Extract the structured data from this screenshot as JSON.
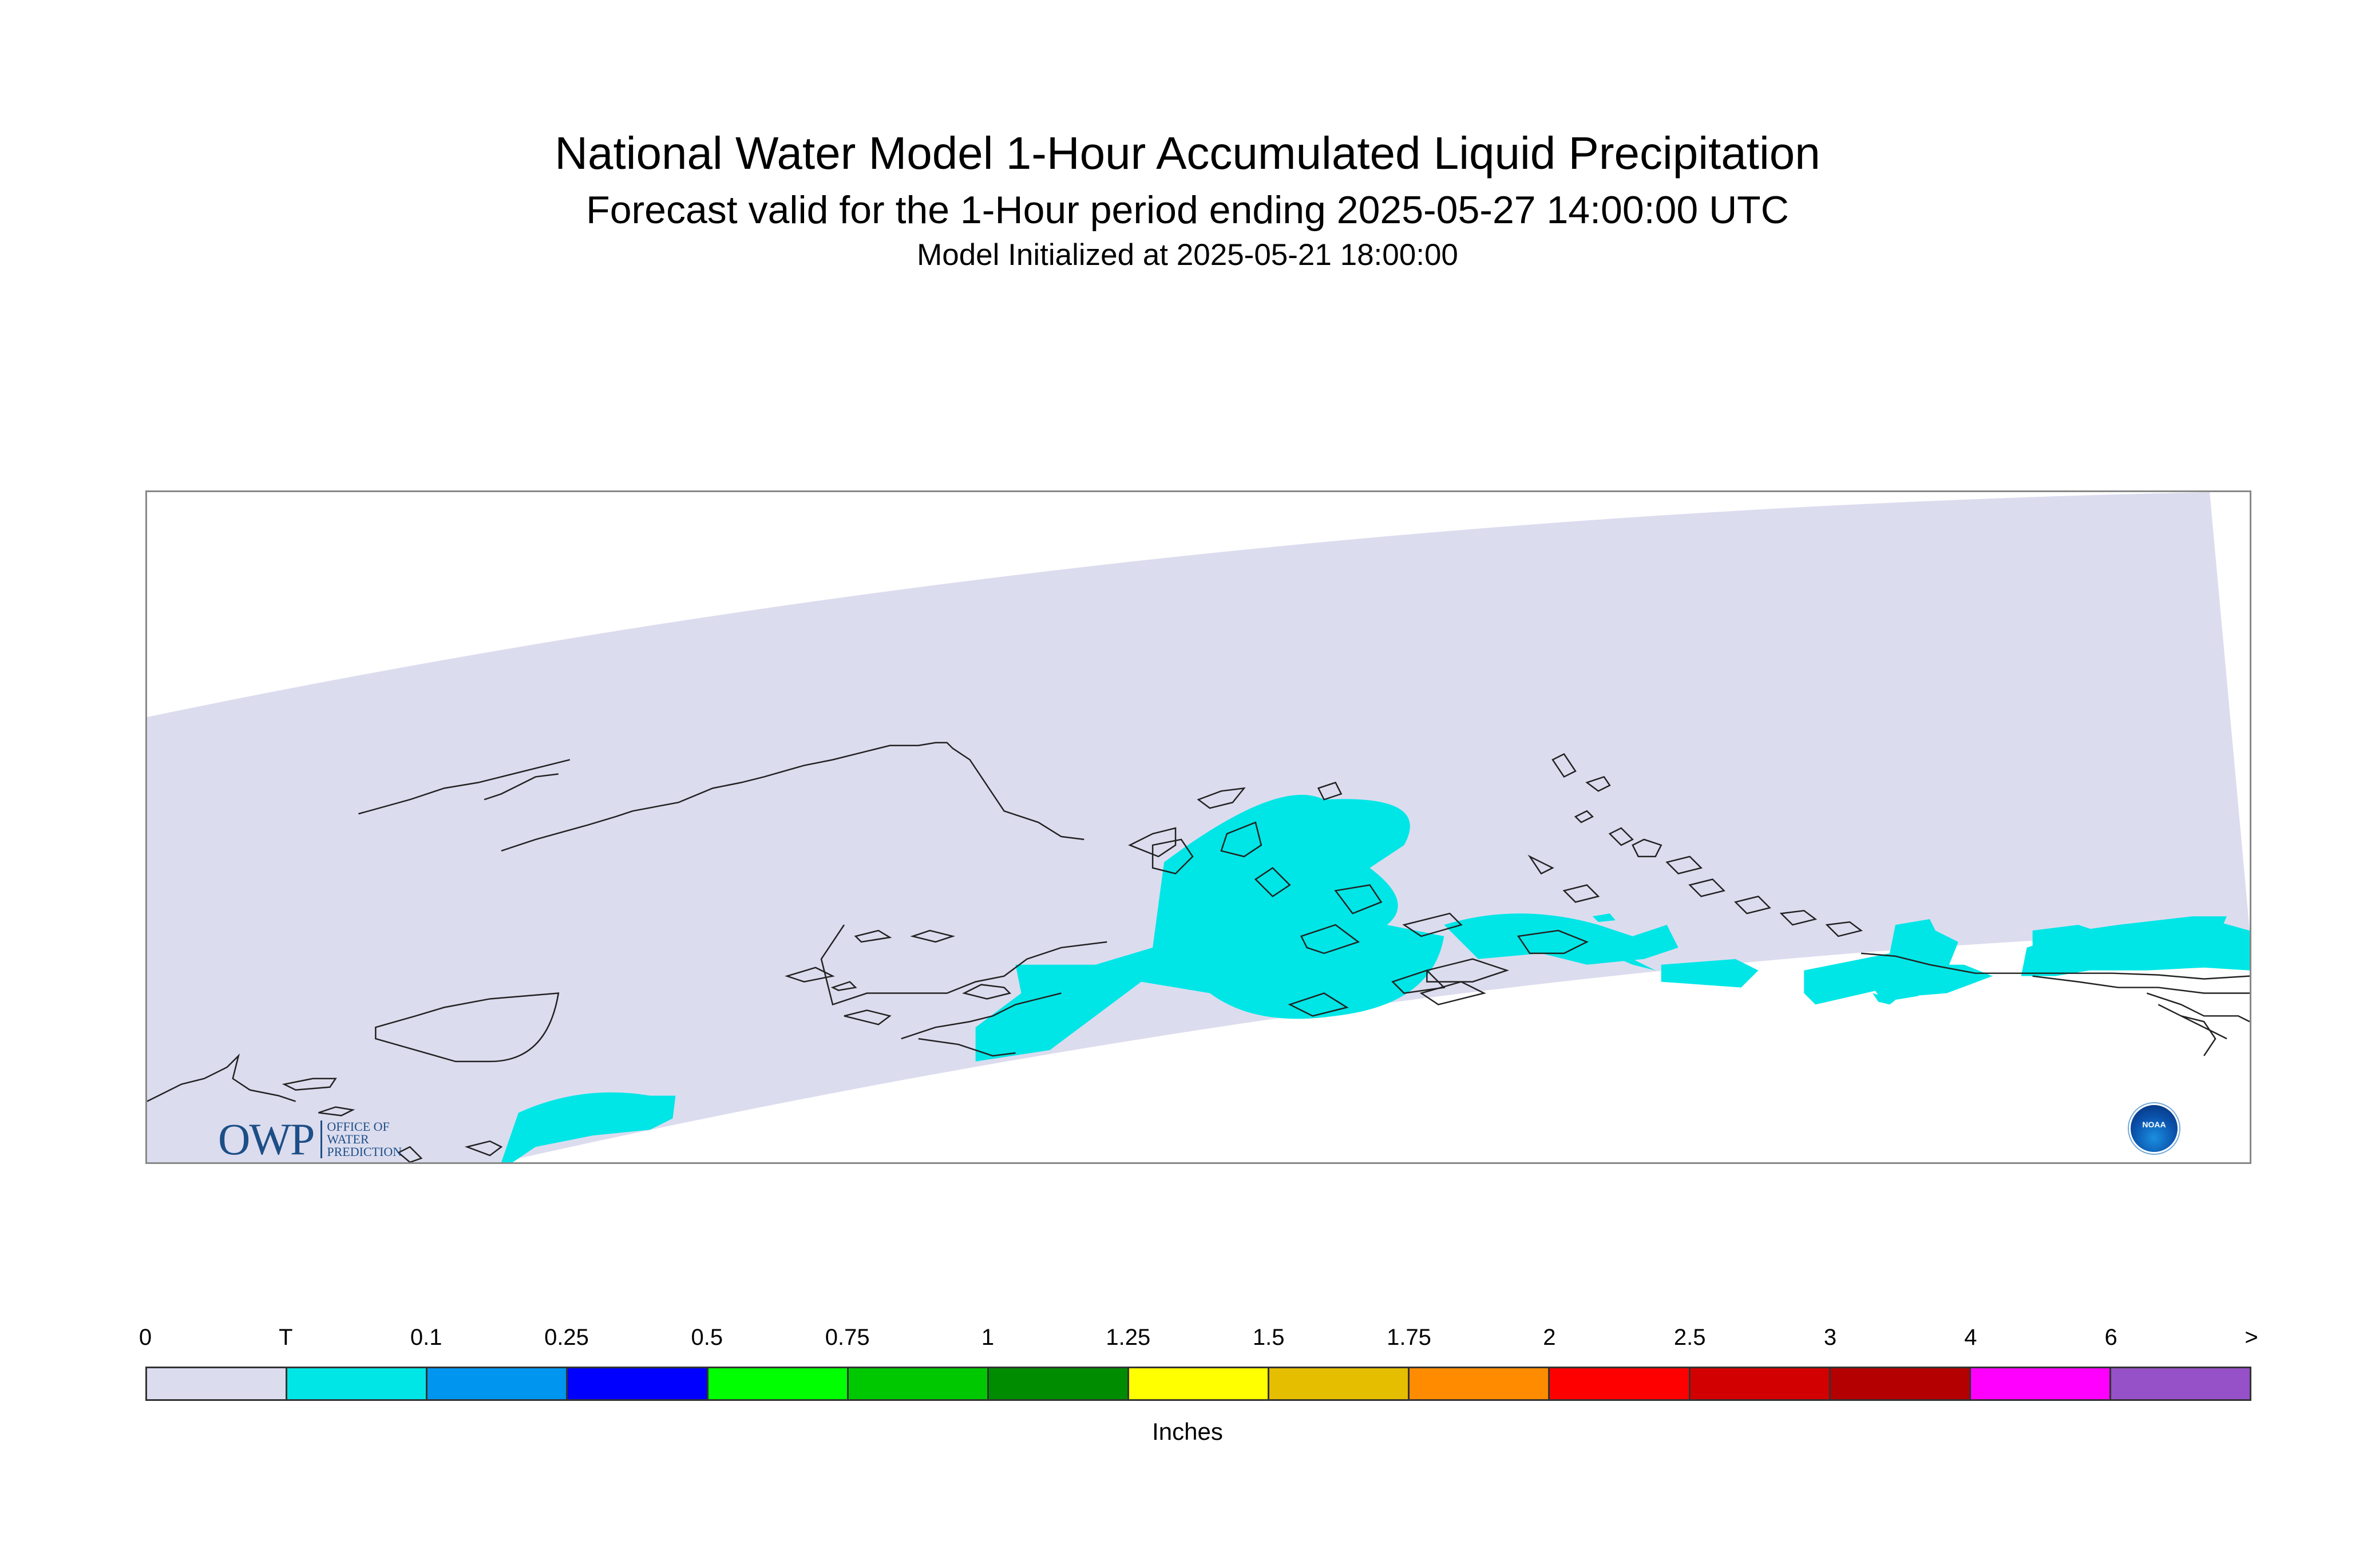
{
  "header": {
    "title": "National Water Model 1-Hour Accumulated Liquid Precipitation",
    "subtitle": "Forecast valid for the 1-Hour period ending 2025-05-27 14:00:00 UTC",
    "init": "Model Initialized at 2025-05-21 18:00:00"
  },
  "logos": {
    "owp_letters": "OWP",
    "owp_line1": "OFFICE OF",
    "owp_line2": "WATER",
    "owp_line3": "PREDICTION",
    "noaa_label": "NOAA"
  },
  "legend": {
    "units": "Inches",
    "tick_labels": [
      "0",
      "T",
      "0.1",
      "0.25",
      "0.5",
      "0.75",
      "1",
      "1.25",
      "1.5",
      "1.75",
      "2",
      "2.5",
      "3",
      "4",
      "6",
      ">"
    ],
    "colors": [
      "#dcdcef",
      "#00e6e6",
      "#0096f0",
      "#0000ff",
      "#00ff00",
      "#00c800",
      "#008c00",
      "#ffff00",
      "#e6be00",
      "#ff8c00",
      "#ff0000",
      "#d20000",
      "#b40000",
      "#ff00ff",
      "#9650c8"
    ]
  },
  "map": {
    "domain_color": "#dcdcef",
    "precip_color": "#00e6e6",
    "coast_color": "#222222"
  }
}
